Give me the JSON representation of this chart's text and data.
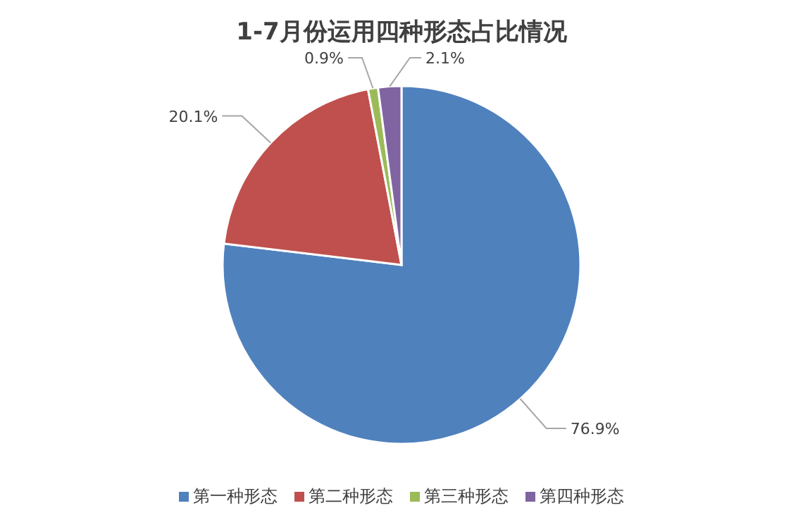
{
  "chart_data": {
    "type": "pie",
    "title": "1-7月份运用四种形态占比情况",
    "categories": [
      "第一种形态",
      "第二种形态",
      "第三种形态",
      "第四种形态"
    ],
    "values": [
      76.9,
      20.1,
      0.9,
      2.1
    ],
    "colors": [
      "#4f81bd",
      "#c0504d",
      "#9bbb59",
      "#8064a2"
    ],
    "value_labels": [
      "76.9%",
      "20.1%",
      "0.9%",
      "2.1%"
    ],
    "legend": "bottom"
  }
}
